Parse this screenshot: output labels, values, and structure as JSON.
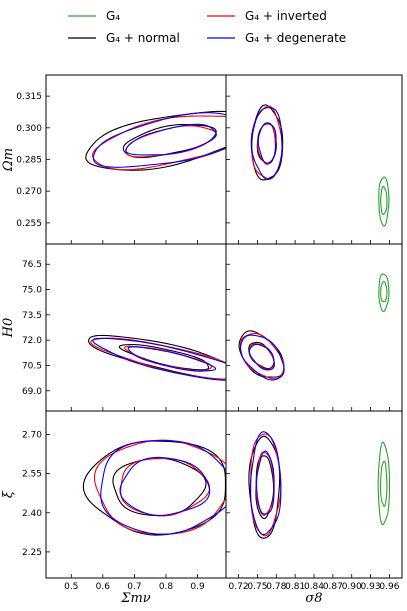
{
  "chart_data": {
    "type": "contour-corner",
    "legend": {
      "placement": "top",
      "entries": [
        {
          "label": "G₄",
          "color": "#2ca02c"
        },
        {
          "label": "G₄ + normal",
          "color": "#000000"
        },
        {
          "label": "G₄ + inverted",
          "color": "#ff0000"
        },
        {
          "label": "G₄ + degenerate",
          "color": "#0000ff"
        }
      ]
    },
    "x_axes": [
      {
        "label": "Σmν",
        "range": [
          0.42,
          0.99
        ],
        "ticks": [
          "0.5",
          "0.6",
          "0.7",
          "0.8",
          "0.9"
        ],
        "tick_values": [
          0.5,
          0.6,
          0.7,
          0.8,
          0.9
        ]
      },
      {
        "label": "σ8",
        "range": [
          0.7,
          0.98
        ],
        "ticks": [
          "0.72",
          "0.75",
          "0.78",
          "0.81",
          "0.84",
          "0.87",
          "0.90",
          "0.93",
          "0.96"
        ],
        "tick_values": [
          0.72,
          0.75,
          0.78,
          0.81,
          0.84,
          0.87,
          0.9,
          0.93,
          0.96
        ]
      }
    ],
    "y_axes": [
      {
        "label": "Ωm",
        "range": [
          0.245,
          0.325
        ],
        "ticks": [
          "0.255",
          "0.270",
          "0.285",
          "0.300",
          "0.315"
        ],
        "tick_values": [
          0.255,
          0.27,
          0.285,
          0.3,
          0.315
        ]
      },
      {
        "label": "H0",
        "range": [
          67.8,
          77.7
        ],
        "ticks": [
          "69.0",
          "70.5",
          "72.0",
          "73.5",
          "75.0",
          "76.5"
        ],
        "tick_values": [
          69.0,
          70.5,
          72.0,
          73.5,
          75.0,
          76.5
        ]
      },
      {
        "label": "ξ",
        "range": [
          2.15,
          2.79
        ],
        "ticks": [
          "2.25",
          "2.40",
          "2.55",
          "2.70"
        ],
        "tick_values": [
          2.25,
          2.4,
          2.55,
          2.7
        ]
      }
    ],
    "series": [
      {
        "name": "G₄",
        "color": "#2ca02c",
        "regions": [
          {
            "col": 1,
            "row": 0,
            "cx": 0.951,
            "cy": 0.2655,
            "rx": 0.008,
            "ry": 0.0115,
            "rx2": 0.005,
            "ry2": 0.0065,
            "rot": 0
          },
          {
            "col": 1,
            "row": 1,
            "cx": 0.951,
            "cy": 74.85,
            "rx": 0.008,
            "ry": 1.1,
            "rx2": 0.005,
            "ry2": 0.6,
            "rot": 0
          },
          {
            "col": 1,
            "row": 2,
            "cx": 0.951,
            "cy": 2.51,
            "rx": 0.009,
            "ry": 0.155,
            "rx2": 0.005,
            "ry2": 0.085,
            "rot": 0
          }
        ]
      },
      {
        "name": "G₄ + normal",
        "color": "#000000",
        "regions": [
          {
            "col": 0,
            "row": 0,
            "cx": 0.81,
            "cy": 0.294,
            "rx": 0.275,
            "ry": 0.0115,
            "rx2": 0.15,
            "ry2": 0.0065,
            "rot": 12
          },
          {
            "col": 1,
            "row": 0,
            "cx": 0.765,
            "cy": 0.2925,
            "rx": 0.025,
            "ry": 0.0175,
            "rx2": 0.015,
            "ry2": 0.0095,
            "rot": 0
          },
          {
            "col": 0,
            "row": 1,
            "cx": 0.8,
            "cy": 71.0,
            "rx": 0.255,
            "ry": 0.75,
            "rx2": 0.145,
            "ry2": 0.45,
            "rot": -14
          },
          {
            "col": 1,
            "row": 1,
            "cx": 0.756,
            "cy": 71.1,
            "rx": 0.027,
            "ry": 1.6,
            "rx2": 0.015,
            "ry2": 0.9,
            "rot": 40
          },
          {
            "col": 0,
            "row": 2,
            "cx": 0.775,
            "cy": 2.5,
            "rx": 0.225,
            "ry": 0.18,
            "rx2": 0.145,
            "ry2": 0.11,
            "rot": 0
          },
          {
            "col": 1,
            "row": 2,
            "cx": 0.761,
            "cy": 2.5,
            "rx": 0.024,
            "ry": 0.195,
            "rx2": 0.014,
            "ry2": 0.12,
            "rot": 0
          }
        ]
      },
      {
        "name": "G₄ + inverted",
        "color": "#ff0000",
        "regions": [
          {
            "col": 0,
            "row": 0,
            "cx": 0.815,
            "cy": 0.2935,
            "rx": 0.255,
            "ry": 0.0105,
            "rx2": 0.145,
            "ry2": 0.006,
            "rot": 12
          },
          {
            "col": 1,
            "row": 0,
            "cx": 0.765,
            "cy": 0.2925,
            "rx": 0.024,
            "ry": 0.017,
            "rx2": 0.014,
            "ry2": 0.0095,
            "rot": 0
          },
          {
            "col": 0,
            "row": 1,
            "cx": 0.81,
            "cy": 70.9,
            "rx": 0.245,
            "ry": 0.7,
            "rx2": 0.14,
            "ry2": 0.42,
            "rot": -14
          },
          {
            "col": 1,
            "row": 1,
            "cx": 0.757,
            "cy": 71.05,
            "rx": 0.026,
            "ry": 1.55,
            "rx2": 0.015,
            "ry2": 0.88,
            "rot": 40
          },
          {
            "col": 0,
            "row": 2,
            "cx": 0.79,
            "cy": 2.5,
            "rx": 0.215,
            "ry": 0.18,
            "rx2": 0.14,
            "ry2": 0.11,
            "rot": 0
          },
          {
            "col": 1,
            "row": 2,
            "cx": 0.762,
            "cy": 2.51,
            "rx": 0.024,
            "ry": 0.195,
            "rx2": 0.014,
            "ry2": 0.12,
            "rot": 0
          }
        ]
      },
      {
        "name": "G₄ + degenerate",
        "color": "#0000ff",
        "regions": [
          {
            "col": 0,
            "row": 0,
            "cx": 0.82,
            "cy": 0.294,
            "rx": 0.255,
            "ry": 0.0105,
            "rx2": 0.145,
            "ry2": 0.006,
            "rot": 12
          },
          {
            "col": 1,
            "row": 0,
            "cx": 0.766,
            "cy": 0.293,
            "rx": 0.024,
            "ry": 0.017,
            "rx2": 0.014,
            "ry2": 0.0095,
            "rot": 0
          },
          {
            "col": 0,
            "row": 1,
            "cx": 0.815,
            "cy": 70.85,
            "rx": 0.245,
            "ry": 0.7,
            "rx2": 0.14,
            "ry2": 0.42,
            "rot": -14
          },
          {
            "col": 1,
            "row": 1,
            "cx": 0.758,
            "cy": 71.0,
            "rx": 0.026,
            "ry": 1.55,
            "rx2": 0.015,
            "ry2": 0.88,
            "rot": 40
          },
          {
            "col": 0,
            "row": 2,
            "cx": 0.795,
            "cy": 2.5,
            "rx": 0.21,
            "ry": 0.18,
            "rx2": 0.14,
            "ry2": 0.11,
            "rot": 0
          },
          {
            "col": 1,
            "row": 2,
            "cx": 0.763,
            "cy": 2.51,
            "rx": 0.024,
            "ry": 0.195,
            "rx2": 0.014,
            "ry2": 0.12,
            "rot": 0
          }
        ]
      }
    ]
  }
}
